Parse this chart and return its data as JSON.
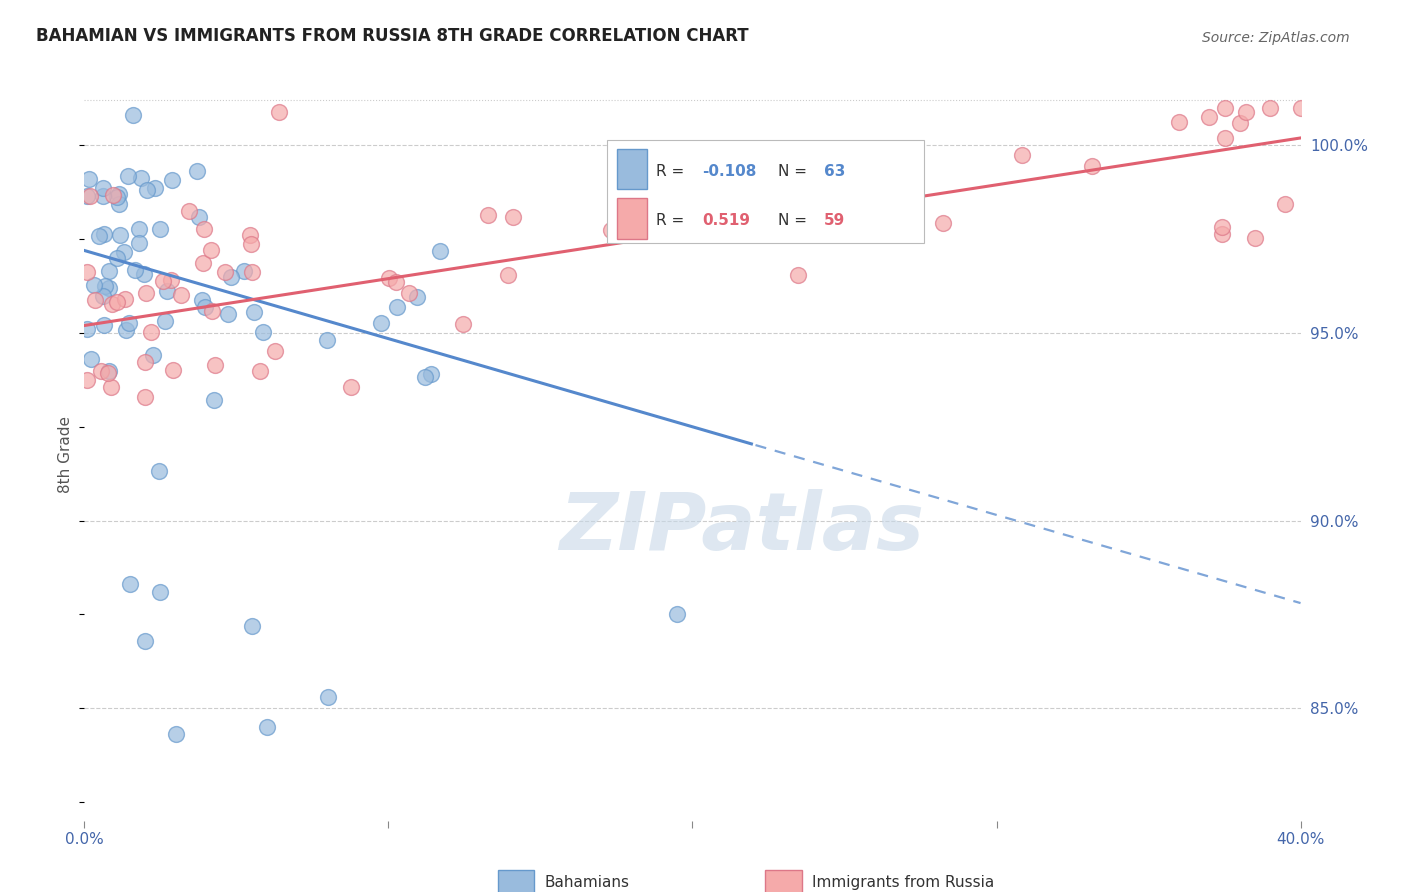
{
  "title": "BAHAMIAN VS IMMIGRANTS FROM RUSSIA 8TH GRADE CORRELATION CHART",
  "source": "Source: ZipAtlas.com",
  "ylabel": "8th Grade",
  "watermark": "ZIPatlas",
  "blue_R": -0.108,
  "blue_N": 63,
  "pink_R": 0.519,
  "pink_N": 59,
  "legend_blue": "Bahamians",
  "legend_pink": "Immigrants from Russia",
  "xmin": 0.0,
  "xmax": 40.0,
  "ymin": 82.0,
  "ymax": 101.5,
  "yticks": [
    85.0,
    90.0,
    95.0,
    100.0
  ],
  "xticks": [
    0.0,
    10.0,
    20.0,
    30.0,
    40.0
  ],
  "blue_line_color": "#5588CC",
  "pink_line_color": "#E06070",
  "blue_dot_face": "#99BBDD",
  "blue_dot_edge": "#6699CC",
  "pink_dot_face": "#F5AAAA",
  "pink_dot_edge": "#DD7788",
  "blue_trend_x0": 0.0,
  "blue_trend_y0": 97.2,
  "blue_trend_x1": 40.0,
  "blue_trend_y1": 87.8,
  "blue_solid_end": 22.0,
  "pink_trend_x0": 0.0,
  "pink_trend_y0": 95.2,
  "pink_trend_x1": 40.0,
  "pink_trend_y1": 100.2,
  "axis_color": "#4466AA",
  "grid_color": "#CCCCCC",
  "title_color": "#222222",
  "source_color": "#666666"
}
